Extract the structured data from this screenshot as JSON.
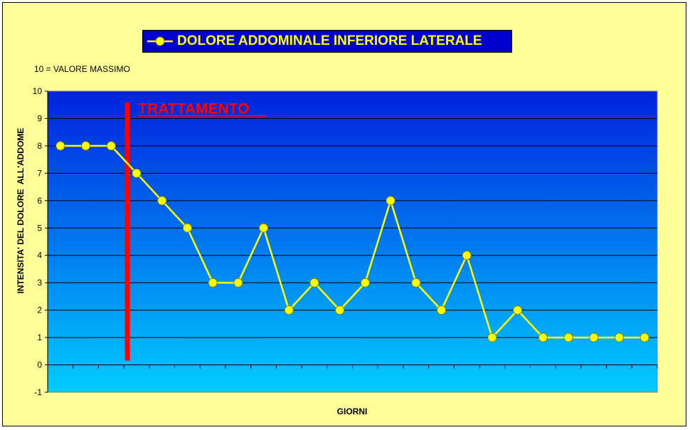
{
  "chart_data": {
    "type": "line",
    "title": "DOLORE ADDOMINALE INFERIORE LATERALE",
    "note": "10 = VALORE MASSIMO",
    "xlabel": "GIORNI",
    "ylabel": "INTENSITA' DEL DOLORE  ALL'ADDOME",
    "ylim": [
      -1,
      10
    ],
    "yticks": [
      -1,
      0,
      1,
      2,
      3,
      4,
      5,
      6,
      7,
      8,
      9,
      10
    ],
    "grid": true,
    "legend_position": "top",
    "series": [
      {
        "name": "DOLORE ADDOMINALE INFERIORE LATERALE",
        "x": [
          1,
          2,
          3,
          4,
          5,
          6,
          7,
          8,
          9,
          10,
          11,
          12,
          13,
          14,
          15,
          16,
          17,
          18,
          19,
          20,
          21,
          22,
          23,
          24
        ],
        "values": [
          8,
          8,
          8,
          7,
          6,
          5,
          3,
          3,
          5,
          2,
          3,
          2,
          3,
          6,
          3,
          2,
          4,
          1,
          2,
          1,
          1,
          1,
          1,
          1
        ]
      }
    ],
    "annotations": [
      {
        "text": "TRATTAMENTO",
        "x": 3.5,
        "y_from": 0,
        "y_to": 9.8
      }
    ],
    "colors": {
      "background": "#ffff99",
      "plot_top": "#0022dd",
      "plot_bottom": "#00ccff",
      "line": "#ffff00",
      "marker_fill": "#ffff00",
      "marker_edge": "#888800",
      "annotation": "#ff0000",
      "legend_bg": "#0000cc",
      "legend_text": "#ffff00"
    }
  }
}
